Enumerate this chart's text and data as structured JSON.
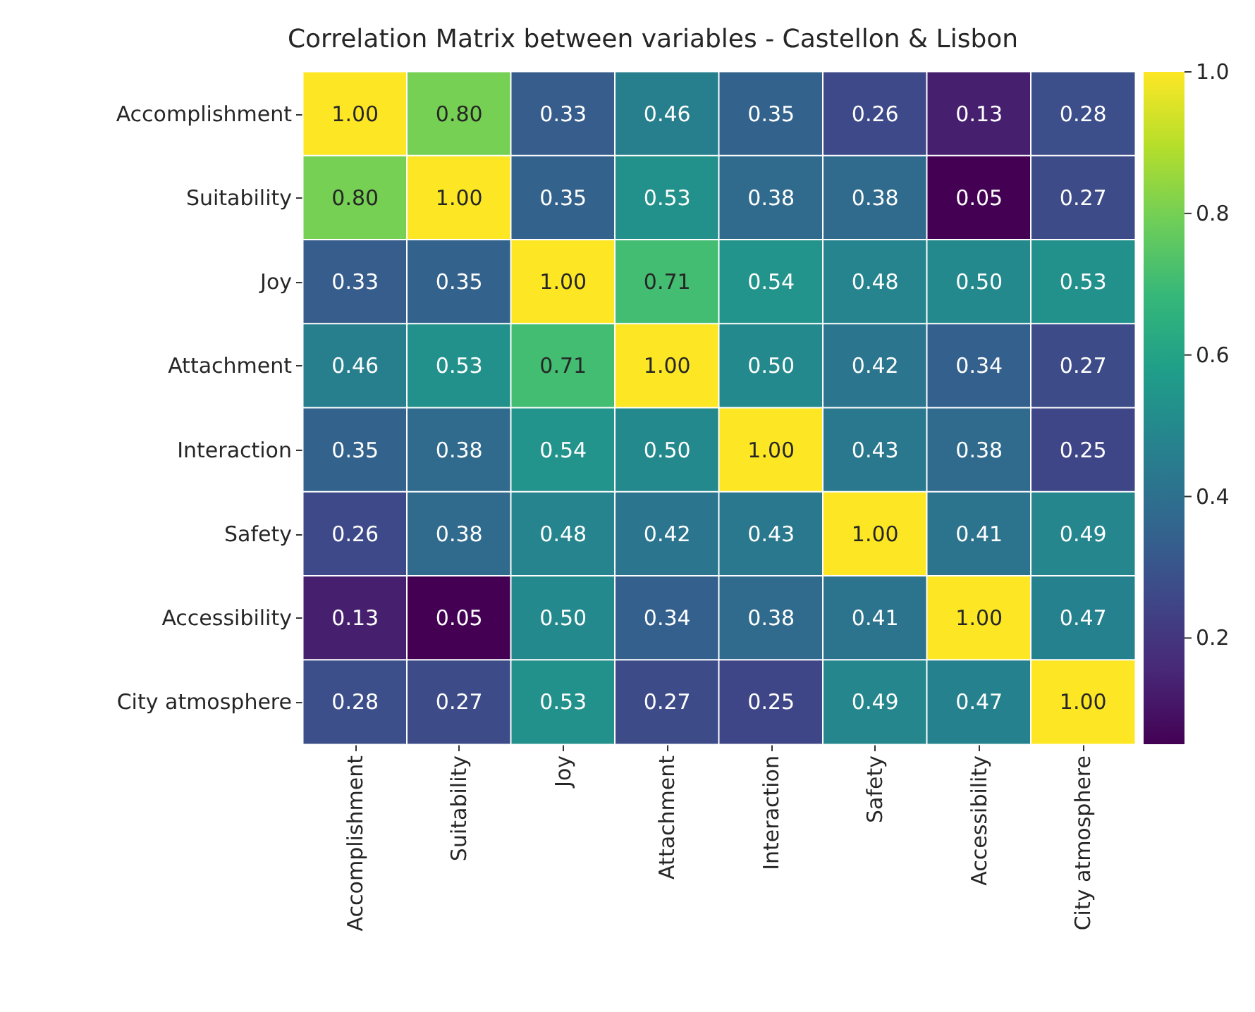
{
  "chart_data": {
    "type": "heatmap",
    "title": "Correlation Matrix between variables - Castellon & Lisbon",
    "categories": [
      "Accomplishment",
      "Suitability",
      "Joy",
      "Attachment",
      "Interaction",
      "Safety",
      "Accessibility",
      "City atmosphere"
    ],
    "y_categories": [
      "Accomplishment",
      "Suitability",
      "Joy",
      "Attachment",
      "Interaction",
      "Safety",
      "Accessibility",
      "City atmosphere"
    ],
    "cells": [
      [
        1.0,
        0.8,
        0.33,
        0.46,
        0.35,
        0.26,
        0.13,
        0.28
      ],
      [
        0.8,
        1.0,
        0.35,
        0.53,
        0.38,
        0.38,
        0.05,
        0.27
      ],
      [
        0.33,
        0.35,
        1.0,
        0.71,
        0.54,
        0.48,
        0.5,
        0.53
      ],
      [
        0.46,
        0.53,
        0.71,
        1.0,
        0.5,
        0.42,
        0.34,
        0.27
      ],
      [
        0.35,
        0.38,
        0.54,
        0.5,
        1.0,
        0.43,
        0.38,
        0.25
      ],
      [
        0.26,
        0.38,
        0.48,
        0.42,
        0.43,
        1.0,
        0.41,
        0.49
      ],
      [
        0.13,
        0.05,
        0.5,
        0.34,
        0.38,
        0.41,
        1.0,
        0.47
      ],
      [
        0.28,
        0.27,
        0.53,
        0.27,
        0.25,
        0.49,
        0.47,
        1.0
      ]
    ],
    "cell_labels": [
      [
        "1.00",
        "0.80",
        "0.33",
        "0.46",
        "0.35",
        "0.26",
        "0.13",
        "0.28"
      ],
      [
        "0.80",
        "1.00",
        "0.35",
        "0.53",
        "0.38",
        "0.38",
        "0.05",
        "0.27"
      ],
      [
        "0.33",
        "0.35",
        "1.00",
        "0.71",
        "0.54",
        "0.48",
        "0.50",
        "0.53"
      ],
      [
        "0.46",
        "0.53",
        "0.71",
        "1.00",
        "0.50",
        "0.42",
        "0.34",
        "0.27"
      ],
      [
        "0.35",
        "0.38",
        "0.54",
        "0.50",
        "1.00",
        "0.43",
        "0.38",
        "0.25"
      ],
      [
        "0.26",
        "0.38",
        "0.48",
        "0.42",
        "0.43",
        "1.00",
        "0.41",
        "0.49"
      ],
      [
        "0.13",
        "0.05",
        "0.50",
        "0.34",
        "0.38",
        "0.41",
        "1.00",
        "0.47"
      ],
      [
        "0.28",
        "0.27",
        "0.53",
        "0.27",
        "0.25",
        "0.49",
        "0.47",
        "1.00"
      ]
    ],
    "clim": [
      0.05,
      1.0
    ],
    "cticks": [
      0.2,
      0.4,
      0.6,
      0.8,
      {
        "value": 1.0,
        "label": "1.0"
      }
    ]
  }
}
